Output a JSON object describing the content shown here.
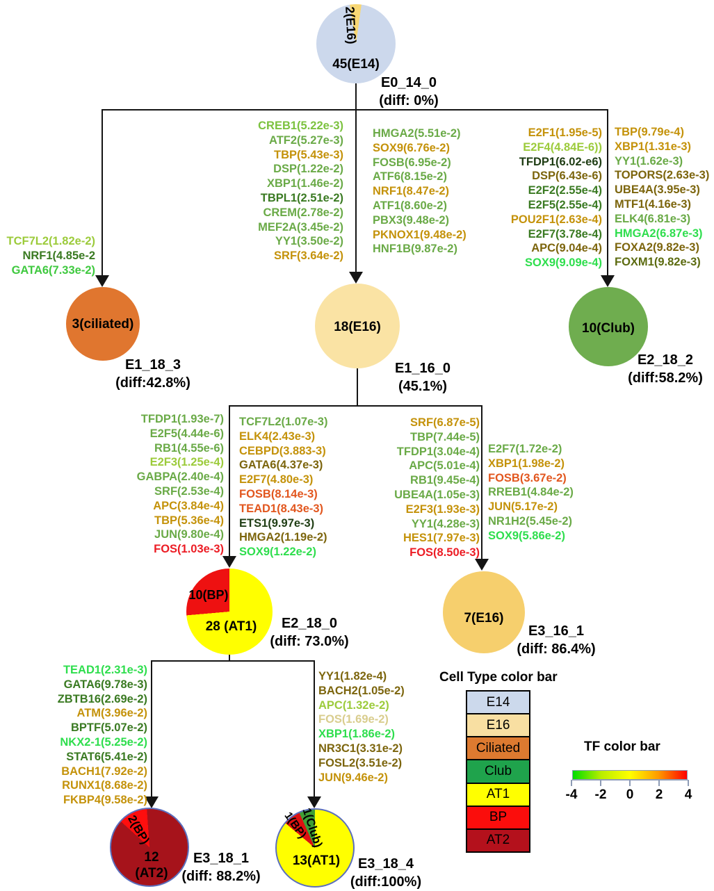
{
  "nodes": {
    "root": {
      "main": "45(E14)",
      "wedge": "2(E16)",
      "tag": "E0_14_0",
      "diff": "(diff: 0%)",
      "pie": [
        {
          "c": "#f8d774",
          "a0": 0,
          "a1": 8
        },
        {
          "c": "#ccd8ec",
          "a0": 8,
          "a1": 351
        },
        {
          "c": "#f8d774",
          "a0": 351,
          "a1": 360
        }
      ]
    },
    "ciliated": {
      "main": "3(ciliated)",
      "tag": "E1_18_3",
      "diff": "(diff:42.8%)",
      "color": "#e0762f"
    },
    "e16_mid": {
      "main": "18(E16)",
      "tag": "E1_16_0",
      "diff": "(45.1%)",
      "color": "#fae3a4"
    },
    "club": {
      "main": "10(Club)",
      "tag": "E2_18_2",
      "diff": "(diff:58.2%)",
      "color": "#6fad4f"
    },
    "at1_bp": {
      "main": "28 (AT1)",
      "wedge": "10(BP)",
      "tag": "E2_18_0",
      "diff": "(diff: 73.0%)",
      "pie": [
        {
          "c": "#ffff00",
          "a0": 0,
          "a1": 265
        },
        {
          "c": "#ee1111",
          "a0": 265,
          "a1": 360
        }
      ]
    },
    "e16_right": {
      "main": "7(E16)",
      "tag": "E3_16_1",
      "diff": "(diff: 86.4%)",
      "color": "#f6cf6d"
    },
    "at2": {
      "main_line1": "12",
      "main_line2": "(AT2)",
      "wedge": "2(BP)",
      "tag": "E3_18_1",
      "diff": "(diff: 88.2%)",
      "border": "#5b6fbe",
      "pie": [
        {
          "c": "#a6131b",
          "a0": 0,
          "a1": 312
        },
        {
          "c": "#ff0e0e",
          "a0": 312,
          "a1": 356
        },
        {
          "c": "#a6131b",
          "a0": 356,
          "a1": 360
        }
      ]
    },
    "at1_final": {
      "main": "13(AT1)",
      "wedge_club": "1(Club)",
      "wedge_bp": "1(BP)",
      "tag": "E3_18_4",
      "diff": "(diff:100%)",
      "border": "#5b6fbe",
      "pie": [
        {
          "c": "#ffff00",
          "a0": 0,
          "a1": 310
        },
        {
          "c": "#dd1111",
          "a0": 310,
          "a1": 336
        },
        {
          "c": "#3f9e36",
          "a0": 336,
          "a1": 360
        }
      ]
    }
  },
  "tf_lists": {
    "ciliated_branch": [
      {
        "t": "TCF7L2(1.82e-2)",
        "c": "#9ccb3b"
      },
      {
        "t": "NRF1(4.85e-2",
        "c": "#3a7a22"
      },
      {
        "t": "GATA6(7.33e-2)",
        "c": "#3fc93f"
      }
    ],
    "mid_col1": [
      {
        "t": "CREB1(5.22e-3)",
        "c": "#7cc23f"
      },
      {
        "t": "ATF2(5.27e-3)",
        "c": "#6aaa47"
      },
      {
        "t": "TBP(5.43e-3)",
        "c": "#c4920a"
      },
      {
        "t": "DSP(1.22e-2)",
        "c": "#6aaa47"
      },
      {
        "t": "XBP1(1.46e-2)",
        "c": "#6aaa47"
      },
      {
        "t": "TBPL1(2.51e-2)",
        "c": "#3a7a22"
      },
      {
        "t": "CREM(2.78e-2)",
        "c": "#6aaa47"
      },
      {
        "t": "MEF2A(3.45e-2)",
        "c": "#6aaa47"
      },
      {
        "t": "YY1(3.50e-2)",
        "c": "#6aaa47"
      },
      {
        "t": "SRF(3.64e-2)",
        "c": "#c4920a"
      }
    ],
    "mid_col2": [
      {
        "t": "HMGA2(5.51e-2)",
        "c": "#6aaa47"
      },
      {
        "t": "SOX9(6.76e-2)",
        "c": "#c4920a"
      },
      {
        "t": "FOSB(6.95e-2)",
        "c": "#6aaa47"
      },
      {
        "t": "ATF6(8.15e-2)",
        "c": "#6aaa47"
      },
      {
        "t": "NRF1(8.47e-2)",
        "c": "#c4920a"
      },
      {
        "t": "ATF1(8.60e-2)",
        "c": "#6aaa47"
      },
      {
        "t": "PBX3(9.48e-2)",
        "c": "#6aaa47"
      },
      {
        "t": "PKNOX1(9.48e-2)",
        "c": "#c4920a"
      },
      {
        "t": "HNF1B(9.87e-2)",
        "c": "#6aaa47"
      }
    ],
    "club_col1": [
      {
        "t": "E2F1(1.95e-5)",
        "c": "#c4920a"
      },
      {
        "t": "E2F4(4.84E-6))",
        "c": "#9ccb3b"
      },
      {
        "t": "TFDP1(6.02-e6)",
        "c": "#1f3d14"
      },
      {
        "t": "DSP(6.43e-6)",
        "c": "#7c650d"
      },
      {
        "t": "E2F2(2.55e-4)",
        "c": "#3a7a22"
      },
      {
        "t": "E2F5(2.55e-4)",
        "c": "#3a7a22"
      },
      {
        "t": "POU2F1(2.63e-4)",
        "c": "#c4920a"
      },
      {
        "t": "E2F7(3.78e-4)",
        "c": "#3a7a22"
      },
      {
        "t": "APC(9.04e-4)",
        "c": "#7c650d"
      },
      {
        "t": "SOX9(9.09e-4)",
        "c": "#2ede4d"
      }
    ],
    "club_col2": [
      {
        "t": "TBP(9.79e-4)",
        "c": "#c4920a"
      },
      {
        "t": "XBP1(1.31e-3)",
        "c": "#c4920a"
      },
      {
        "t": "YY1(1.62e-3)",
        "c": "#6aaa47"
      },
      {
        "t": "TOPORS(2.63e-3)",
        "c": "#7c650d"
      },
      {
        "t": "UBE4A(3.95e-3)",
        "c": "#7c650d"
      },
      {
        "t": "MTF1(4.16e-3)",
        "c": "#7c650d"
      },
      {
        "t": "ELK4(6.81e-3)",
        "c": "#6aaa47"
      },
      {
        "t": "HMGA2(6.87e-3)",
        "c": "#2ede4d"
      },
      {
        "t": "FOXA2(9.82e-3)",
        "c": "#7c650d"
      },
      {
        "t": "FOXM1(9.82e-3)",
        "c": "#5c6b10"
      }
    ],
    "lv3_col1": [
      {
        "t": "TFDP1(1.93e-7)",
        "c": "#6aaa47"
      },
      {
        "t": "E2F5(4.44e-6)",
        "c": "#6aaa47"
      },
      {
        "t": "RB1(4.55e-6)",
        "c": "#6aaa47"
      },
      {
        "t": "E2F3(1.25e-4)",
        "c": "#9ccb3b"
      },
      {
        "t": "GABPA(2.40e-4)",
        "c": "#6aaa47"
      },
      {
        "t": "SRF(2.53e-4)",
        "c": "#6aaa47"
      },
      {
        "t": "APC(3.84e-4)",
        "c": "#c4920a"
      },
      {
        "t": "TBP(5.36e-4)",
        "c": "#c4920a"
      },
      {
        "t": "JUN(9.80e-4)",
        "c": "#6aaa47"
      },
      {
        "t": "FOS(1.03e-3)",
        "c": "#ec1c24"
      }
    ],
    "lv3_col2": [
      {
        "t": "TCF7L2(1.07e-3)",
        "c": "#6aaa47"
      },
      {
        "t": "ELK4(2.43e-3)",
        "c": "#c4920a"
      },
      {
        "t": "CEBPD(3.883-3)",
        "c": "#c4920a"
      },
      {
        "t": "GATA6(4.37e-3)",
        "c": "#7c650d"
      },
      {
        "t": "E2F7(4.80e-3)",
        "c": "#c4920a"
      },
      {
        "t": "FOSB(8.14e-3)",
        "c": "#e2571f"
      },
      {
        "t": "TEAD1(8.43e-3)",
        "c": "#e2571f"
      },
      {
        "t": "ETS1(9.97e-3)",
        "c": "#1f3d14"
      },
      {
        "t": "HMGA2(1.19e-2)",
        "c": "#7c650d"
      },
      {
        "t": "SOX9(1.22e-2)",
        "c": "#2ede4d"
      }
    ],
    "lv3_col3": [
      {
        "t": "SRF(6.87e-5)",
        "c": "#c4920a"
      },
      {
        "t": "TBP(7.44e-5)",
        "c": "#6aaa47"
      },
      {
        "t": "TFDP1(3.04e-4)",
        "c": "#6aaa47"
      },
      {
        "t": "APC(5.01e-4)",
        "c": "#6aaa47"
      },
      {
        "t": "RB1(9.45e-4)",
        "c": "#6aaa47"
      },
      {
        "t": "UBE4A(1.05e-3)",
        "c": "#6aaa47"
      },
      {
        "t": "E2F3(1.93e-3)",
        "c": "#c4920a"
      },
      {
        "t": "YY1(4.28e-3)",
        "c": "#6aaa47"
      },
      {
        "t": "HES1(7.97e-3)",
        "c": "#c4920a"
      },
      {
        "t": "FOS(8.50e-3)",
        "c": "#ec1c24"
      }
    ],
    "lv3_col4": [
      {
        "t": "E2F7(1.72e-2)",
        "c": "#6aaa47"
      },
      {
        "t": "XBP1(1.98e-2)",
        "c": "#c4920a"
      },
      {
        "t": "FOSB(3.67e-2)",
        "c": "#e2571f"
      },
      {
        "t": "RREB1(4.84e-2)",
        "c": "#6aaa47"
      },
      {
        "t": "JUN(5.17e-2)",
        "c": "#c4920a"
      },
      {
        "t": "NR1H2(5.45e-2)",
        "c": "#6aaa47"
      },
      {
        "t": "SOX9(5.86e-2)",
        "c": "#2ede4d"
      }
    ],
    "lv4_left": [
      {
        "t": "TEAD1(2.31e-3)",
        "c": "#2ede4d"
      },
      {
        "t": "GATA6(9.78e-3)",
        "c": "#3a7a22"
      },
      {
        "t": "ZBTB16(2.69e-2)",
        "c": "#3a7a22"
      },
      {
        "t": "ATM(3.96e-2)",
        "c": "#c4920a"
      },
      {
        "t": "BPTF(5.07e-2)",
        "c": "#3a7a22"
      },
      {
        "t": "NKX2-1(5.25e-2)",
        "c": "#2ede4d"
      },
      {
        "t": "STAT6(5.41e-2)",
        "c": "#3a7a22"
      },
      {
        "t": "BACH1(7.92e-2)",
        "c": "#c4920a"
      },
      {
        "t": "RUNX1(8.68e-2)",
        "c": "#c4920a"
      },
      {
        "t": "FKBP4(9.58e-2)",
        "c": "#c4920a"
      }
    ],
    "lv4_right": [
      {
        "t": "YY1(1.82e-4)",
        "c": "#7c650d"
      },
      {
        "t": "BACH2(1.05e-2)",
        "c": "#7c650d"
      },
      {
        "t": "APC(1.32e-2)",
        "c": "#9ccb3b"
      },
      {
        "t": "FOS(1.69e-2)",
        "c": "#d9cd8e"
      },
      {
        "t": "XBP1(1.86e-2)",
        "c": "#2ede4d"
      },
      {
        "t": "NR3C1(3.31e-2)",
        "c": "#7c650d"
      },
      {
        "t": "FOSL2(3.51e-2)",
        "c": "#7c650d"
      },
      {
        "t": "JUN(9.46e-2)",
        "c": "#c4920a"
      }
    ]
  },
  "legend": {
    "title": "Cell Type color bar",
    "rows": [
      {
        "label": "E14",
        "color": "#ccd9ec"
      },
      {
        "label": "E16",
        "color": "#f8dfa2"
      },
      {
        "label": "Ciliated",
        "color": "#dd7a30"
      },
      {
        "label": "Club",
        "color": "#1fa34c"
      },
      {
        "label": "AT1",
        "color": "#ffff00"
      },
      {
        "label": "BP",
        "color": "#fb0d0c"
      },
      {
        "label": "AT2",
        "color": "#b4111c"
      }
    ]
  },
  "tf_colorbar": {
    "title": "TF color bar",
    "gradient": [
      "#00dd00",
      "#baee00",
      "#ffff00",
      "#ff9a00",
      "#ff0000"
    ],
    "ticks": [
      "-4",
      "-2",
      "0",
      "2",
      "4"
    ]
  }
}
